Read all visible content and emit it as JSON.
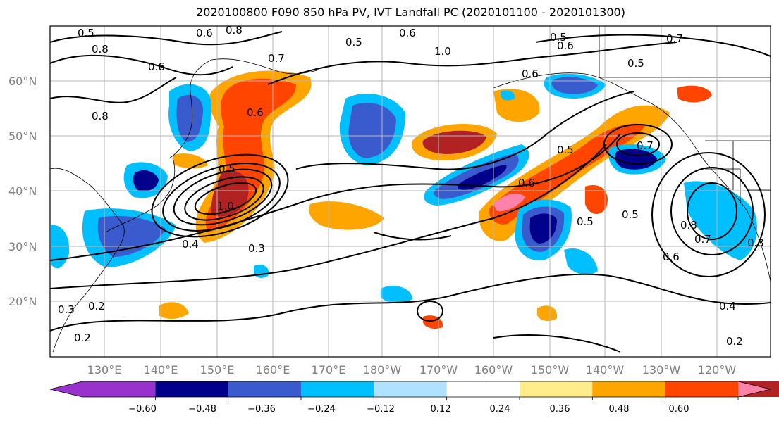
{
  "title": "2020100800 F090 850 hPa PV, IVT Landfall PC (2020101100 - 2020101300)",
  "map": {
    "lat_labels": [
      "60°N",
      "50°N",
      "40°N",
      "30°N",
      "20°N"
    ],
    "lon_labels": [
      "130°E",
      "140°E",
      "150°E",
      "160°E",
      "170°E",
      "180°W",
      "170°W",
      "160°W",
      "150°W",
      "140°W",
      "130°W",
      "120°W"
    ],
    "contour_labels": [
      "0.5",
      "0.6",
      "0.8",
      "0.5",
      "0.6",
      "1.0",
      "0.5",
      "0.6",
      "0.7",
      "0.5",
      "0.8",
      "0.6",
      "0.6",
      "0.7",
      "0.6",
      "0.8",
      "0.5",
      "1.0",
      "0.4",
      "0.3",
      "0.5",
      "0.6",
      "0.7",
      "0.5",
      "0.5",
      "0.8",
      "0.7",
      "0.6",
      "0.3",
      "0.4",
      "0.2",
      "0.3",
      "0.2",
      "0.2"
    ]
  },
  "colorbar": {
    "colors": [
      "#9932cc",
      "#00008b",
      "#3a5bcd",
      "#00bfff",
      "#b0e2ff",
      "#ffffff",
      "#ffec8b",
      "#ffa500",
      "#ff4500",
      "#b22222",
      "#ff82ab"
    ],
    "tick_labels": [
      "−0.60",
      "−0.48",
      "−0.36",
      "−0.24",
      "−0.12",
      "0.12",
      "0.24",
      "0.36",
      "0.48",
      "0.60"
    ]
  }
}
